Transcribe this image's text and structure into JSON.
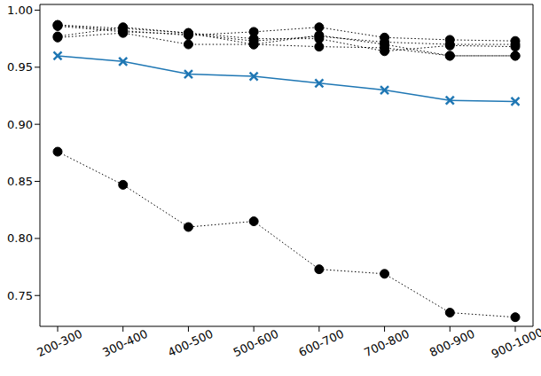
{
  "chart_data": {
    "type": "line",
    "categories": [
      "200-300",
      "300-400",
      "400-500",
      "500-600",
      "600-700",
      "700-800",
      "800-900",
      "900-1000"
    ],
    "series": [
      {
        "color": "#000000",
        "marker": "circle",
        "line_style": "dotted",
        "values": [
          0.987,
          0.984,
          0.98,
          0.97,
          0.968,
          0.967,
          0.96,
          0.96
        ]
      },
      {
        "color": "#000000",
        "marker": "circle",
        "line_style": "dotted",
        "values": [
          0.987,
          0.982,
          0.978,
          0.981,
          0.985,
          0.976,
          0.974,
          0.973
        ]
      },
      {
        "color": "#000000",
        "marker": "circle",
        "line_style": "dotted",
        "values": [
          0.976,
          0.98,
          0.97,
          0.97,
          0.978,
          0.97,
          0.96,
          0.96
        ]
      },
      {
        "color": "#000000",
        "marker": "circle",
        "line_style": "dotted",
        "values": [
          0.977,
          0.985,
          0.98,
          0.975,
          0.975,
          0.964,
          0.969,
          0.968
        ]
      },
      {
        "color": "#000000",
        "marker": "circle",
        "line_style": "dotted",
        "values": [
          0.986,
          0.981,
          0.979,
          0.973,
          0.977,
          0.972,
          0.97,
          0.97
        ]
      },
      {
        "color": "#1f77b4",
        "marker": "x",
        "line_style": "solid",
        "values": [
          0.96,
          0.955,
          0.944,
          0.942,
          0.936,
          0.93,
          0.921,
          0.92
        ]
      },
      {
        "color": "#000000",
        "marker": "circle",
        "line_style": "dotted",
        "values": [
          0.876,
          0.847,
          0.81,
          0.815,
          0.773,
          0.769,
          0.735,
          0.731
        ]
      }
    ],
    "ylim": [
      0.723,
      1.005
    ],
    "yticks": [
      0.75,
      {
        "value": 0.8,
        "label": "0.80"
      },
      0.85,
      {
        "value": 0.9,
        "label": "0.90"
      },
      0.95,
      {
        "value": 1.0,
        "label": "1.00"
      }
    ]
  }
}
